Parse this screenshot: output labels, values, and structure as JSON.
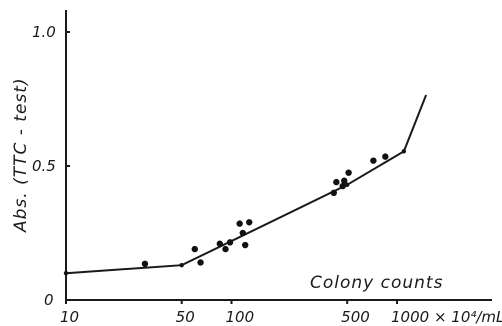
{
  "chart_data": {
    "type": "scatter",
    "title": "",
    "xlabel": "Colony counts",
    "ylabel": "Abs. (TTC - test)",
    "x_scale": "log",
    "xlim": [
      10,
      1500
    ],
    "ylim": [
      0,
      1.1
    ],
    "x_ticks": [
      {
        "value": 10,
        "label": "10"
      },
      {
        "value": 50,
        "label": "50"
      },
      {
        "value": 100,
        "label": "100"
      },
      {
        "value": 500,
        "label": "500"
      },
      {
        "value": 1000,
        "label": "1000 × 10⁴/mL"
      }
    ],
    "y_ticks": [
      {
        "value": 0,
        "label": "0"
      },
      {
        "value": 0.5,
        "label": "0.5"
      },
      {
        "value": 1.0,
        "label": "1.0"
      }
    ],
    "series": [
      {
        "type": "scatter",
        "points": [
          [
            30,
            0.135
          ],
          [
            60,
            0.19
          ],
          [
            65,
            0.14
          ],
          [
            85,
            0.21
          ],
          [
            92,
            0.19
          ],
          [
            98,
            0.215
          ],
          [
            112,
            0.285
          ],
          [
            117,
            0.25
          ],
          [
            121,
            0.205
          ],
          [
            128,
            0.29
          ],
          [
            415,
            0.4
          ],
          [
            430,
            0.44
          ],
          [
            470,
            0.425
          ],
          [
            480,
            0.445
          ],
          [
            510,
            0.475
          ],
          [
            720,
            0.52
          ],
          [
            850,
            0.535
          ]
        ]
      },
      {
        "type": "line",
        "points": [
          [
            10,
            0.1
          ],
          [
            50,
            0.13
          ],
          [
            500,
            0.43
          ],
          [
            1100,
            0.555
          ],
          [
            1500,
            0.765
          ]
        ]
      }
    ]
  }
}
